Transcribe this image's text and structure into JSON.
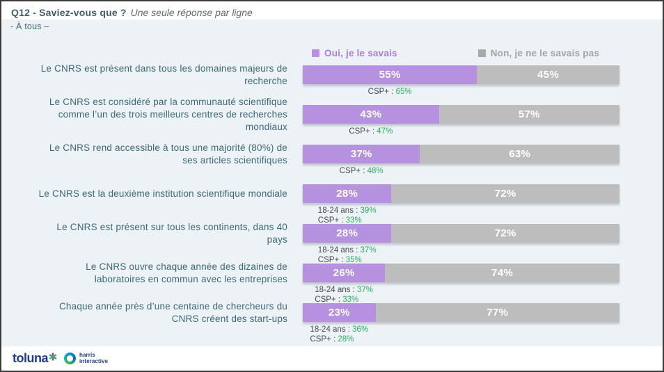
{
  "header": {
    "title_bold": "Q12 - Saviez-vous que ?",
    "title_italic": "Une seule réponse par ligne",
    "audience": "- À tous –"
  },
  "colors": {
    "yes_bar": "#b591e0",
    "no_bar": "#bdbdbd",
    "yes_legend_text": "#a77fd4",
    "no_legend_text": "#a3a3a3",
    "category_label": "#3a6878",
    "annotation_green": "#27ae60",
    "logo_navy": "#1f3b8c"
  },
  "chart_data": {
    "type": "bar",
    "orientation": "horizontal-stacked",
    "title": "Q12 - Saviez-vous que ?",
    "legend_position": "top",
    "x_range": [
      0,
      100
    ],
    "unit": "%",
    "categories": [
      "Le CNRS est présent dans tous les domaines majeurs de recherche",
      "Le CNRS est considéré par la communauté scientifique comme l’un des trois meilleurs centres de recherches mondiaux",
      "Le CNRS rend accessible à tous une majorité (80%) de ses articles scientifiques",
      "Le CNRS est la deuxième institution scientifique mondiale",
      "Le CNRS est présent sur tous les continents, dans 40 pays",
      "Le CNRS ouvre chaque année des dizaines de laboratoires en commun avec les entreprises",
      "Chaque année près d’une centaine de chercheurs du CNRS créent des start-ups"
    ],
    "series": [
      {
        "name": "Oui, je le savais",
        "color": "#b591e0",
        "values": [
          55,
          43,
          37,
          28,
          28,
          26,
          23
        ]
      },
      {
        "name": "Non, je ne le savais pas",
        "color": "#bdbdbd",
        "values": [
          45,
          57,
          63,
          72,
          72,
          74,
          77
        ]
      }
    ],
    "annotations": [
      [
        {
          "prefix": "CSP+ :",
          "value": "65%"
        }
      ],
      [
        {
          "prefix": "CSP+ :",
          "value": "47%"
        }
      ],
      [
        {
          "prefix": "CSP+ :",
          "value": "48%"
        }
      ],
      [
        {
          "prefix": "18-24 ans :",
          "value": "39%"
        },
        {
          "prefix": "CSP+ :",
          "value": "33%"
        }
      ],
      [
        {
          "prefix": "18-24 ans :",
          "value": "37%"
        },
        {
          "prefix": "CSP+ :",
          "value": "35%"
        }
      ],
      [
        {
          "prefix": "18-24 ans :",
          "value": "37%"
        },
        {
          "prefix": "CSP+ :",
          "value": "33%"
        }
      ],
      [
        {
          "prefix": "18-24 ans :",
          "value": "36%"
        },
        {
          "prefix": "CSP+ :",
          "value": "28%"
        }
      ]
    ]
  },
  "footer": {
    "toluna_text": "toluna",
    "harris_line1": "harris",
    "harris_line2": "interactive"
  }
}
